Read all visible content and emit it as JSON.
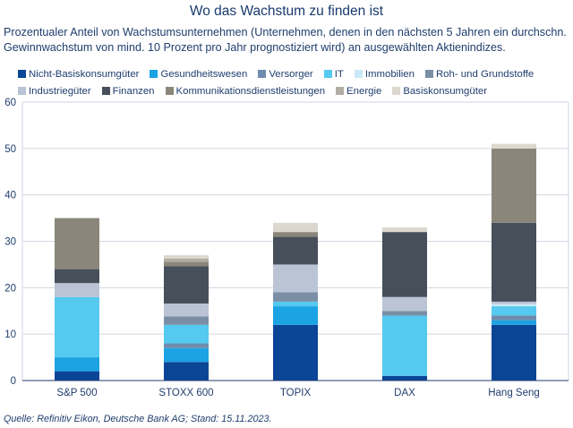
{
  "title": "Wo das Wachstum zu finden ist",
  "subtitle": "Prozentualer Anteil von Wachstumsunternehmen (Unternehmen, denen in den nächsten 5 Jahren ein durchschn. Gewinnwachstum von mind. 10 Prozent pro Jahr prognostiziert wird) an ausgewählten Aktienindizes.",
  "source": "Quelle: Refinitiv Eikon, Deutsche Bank AG; Stand: 15.11.2023.",
  "chart_data": {
    "type": "bar",
    "stacked": true,
    "categories": [
      "S&P 500",
      "STOXX 600",
      "TOPIX",
      "DAX",
      "Hang Seng"
    ],
    "ylim": [
      0,
      60
    ],
    "yticks": [
      "0",
      "10",
      "20",
      "30",
      "40",
      "50",
      "60"
    ],
    "grid": true,
    "legend_position": "top",
    "series": [
      {
        "name": "Nicht-Basiskonsumgüter",
        "color": "#0b4595",
        "values": [
          2,
          4,
          12,
          1,
          12
        ]
      },
      {
        "name": "Gesundheitswesen",
        "color": "#1ba3e3",
        "values": [
          3,
          3,
          4,
          0,
          1
        ]
      },
      {
        "name": "Versorger",
        "color": "#6e8cad",
        "values": [
          0,
          1,
          0,
          0,
          1
        ]
      },
      {
        "name": "IT",
        "color": "#55c9ef",
        "values": [
          13,
          4,
          1,
          13,
          2
        ]
      },
      {
        "name": "Immobilien",
        "color": "#c9e9f6",
        "values": [
          0,
          0,
          0,
          0,
          0.5
        ]
      },
      {
        "name": "Roh- und Grundstoffe",
        "color": "#7a8ea6",
        "values": [
          0,
          1.8,
          2,
          1,
          0
        ]
      },
      {
        "name": "Industriegüter",
        "color": "#bac4d4",
        "values": [
          3,
          2.8,
          6,
          3,
          0.5
        ]
      },
      {
        "name": "Finanzen",
        "color": "#464f5a",
        "values": [
          3,
          8,
          6,
          14,
          17
        ]
      },
      {
        "name": "Kommunikationsdienstleistungen",
        "color": "#8a867a",
        "values": [
          11,
          1,
          1,
          0,
          16
        ]
      },
      {
        "name": "Energie",
        "color": "#b1ada2",
        "values": [
          0,
          0.7,
          0,
          0,
          0
        ]
      },
      {
        "name": "Basiskonsumgüter",
        "color": "#ddd8cf",
        "values": [
          0,
          0.7,
          2,
          1,
          1
        ]
      }
    ]
  }
}
